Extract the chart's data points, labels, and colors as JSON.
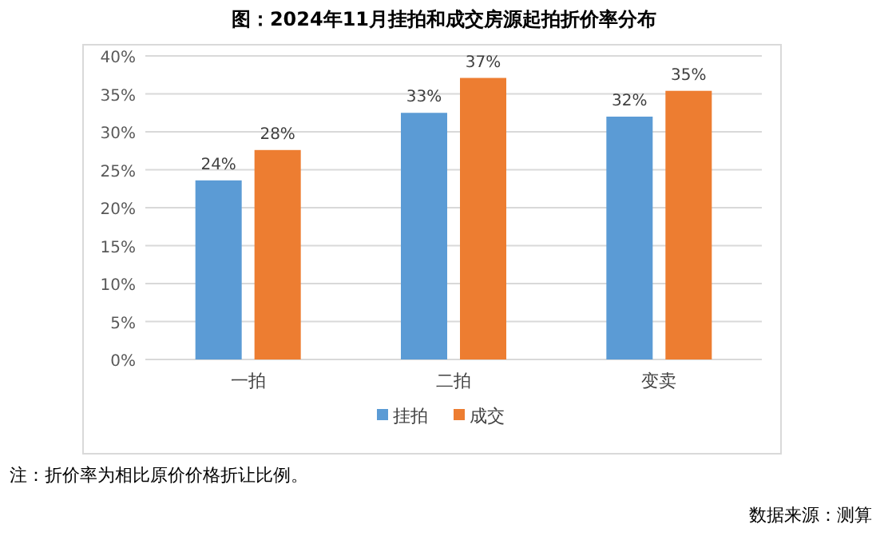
{
  "chart_data": {
    "type": "bar",
    "title": "图：2024年11月挂拍和成交房源起拍折价率分布",
    "categories": [
      "一拍",
      "二拍",
      "变卖"
    ],
    "series": [
      {
        "name": "挂拍",
        "color": "#5b9bd5",
        "values": [
          23.6,
          32.5,
          32.0
        ],
        "value_labels": [
          "24%",
          "33%",
          "32%"
        ]
      },
      {
        "name": "成交",
        "color": "#ed7d31",
        "values": [
          27.6,
          37.1,
          35.4
        ],
        "value_labels": [
          "28%",
          "37%",
          "35%"
        ]
      }
    ],
    "ylim": [
      0,
      40
    ],
    "yticks": [
      {
        "value": 0,
        "label": "0%"
      },
      {
        "value": 5,
        "label": "5%"
      },
      {
        "value": 10,
        "label": "10%"
      },
      {
        "value": 15,
        "label": "15%"
      },
      {
        "value": 20,
        "label": "20%"
      },
      {
        "value": 25,
        "label": "25%"
      },
      {
        "value": 30,
        "label": "30%"
      },
      {
        "value": 35,
        "label": "35%"
      },
      {
        "value": 40,
        "label": "40%"
      }
    ],
    "grid": "y",
    "legend": "bottom",
    "annotations": [
      "注：折价率为相比原价价格折让比例。",
      "数据来源：测算"
    ]
  }
}
